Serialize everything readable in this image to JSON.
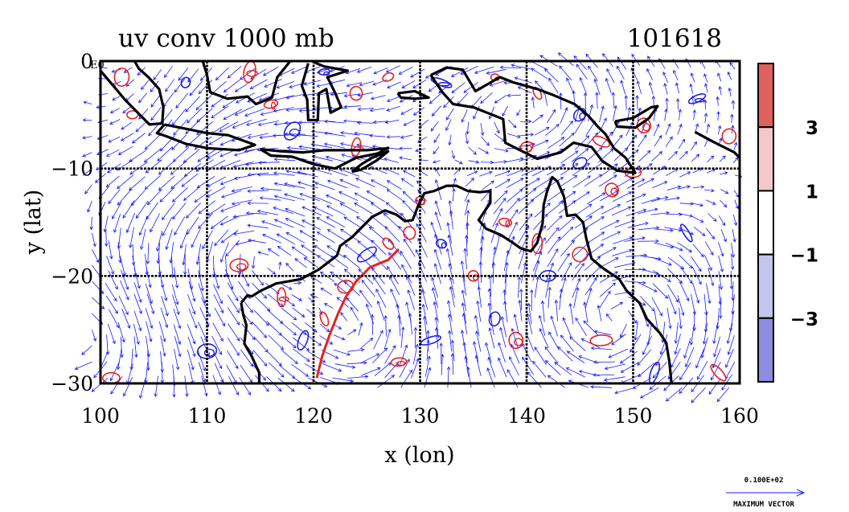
{
  "chart_data": {
    "type": "vector-field-contour",
    "title": "uv conv 1000 mb",
    "date_label": "101618",
    "xlabel": "x (lon)",
    "ylabel": "y (lat)",
    "xlim": [
      100,
      160
    ],
    "ylim": [
      -30,
      0
    ],
    "x_ticks": [
      "100",
      "110",
      "120",
      "130",
      "140",
      "150",
      "160"
    ],
    "y_ticks": [
      "0",
      "−10",
      "−20",
      "−30"
    ],
    "y_ticks_values": [
      0,
      -10,
      -20,
      -30
    ],
    "x_ticks_values": [
      100,
      110,
      120,
      130,
      140,
      150,
      160
    ],
    "top_left_label": "E0",
    "grid_x": [
      110,
      120,
      130,
      140,
      150
    ],
    "grid_y": [
      -10,
      -20
    ],
    "colorbar": {
      "levels": [
        3,
        1,
        -1,
        -3
      ],
      "labels": [
        "3",
        "1",
        "−1",
        "−3"
      ],
      "colors": [
        "#e06060",
        "#f4c8c8",
        "#ffffff",
        "#c4c4ec",
        "#8c8ce0"
      ]
    },
    "vector_color": "#1a1aff",
    "positive_contour_color": "#e82020",
    "negative_contour_color": "#2020e0",
    "coast_color": "#000000",
    "reference_vector": {
      "value": "0.100E+02",
      "label": "MAXIMUM VECTOR"
    },
    "coastlines": [
      {
        "name": "australia",
        "points": [
          [
            113.2,
            -22.5
          ],
          [
            113.8,
            -21.8
          ],
          [
            114.2,
            -21.9
          ],
          [
            115.0,
            -21.4
          ],
          [
            116.5,
            -20.7
          ],
          [
            118.8,
            -20.3
          ],
          [
            120.5,
            -19.4
          ],
          [
            122.2,
            -18.1
          ],
          [
            122.5,
            -17.2
          ],
          [
            123.6,
            -16.4
          ],
          [
            124.5,
            -15.5
          ],
          [
            125.5,
            -14.5
          ],
          [
            126.7,
            -13.9
          ],
          [
            127.8,
            -14.3
          ],
          [
            128.6,
            -14.9
          ],
          [
            129.3,
            -14.8
          ],
          [
            129.8,
            -13.5
          ],
          [
            130.4,
            -12.3
          ],
          [
            131.3,
            -12.1
          ],
          [
            132.5,
            -11.6
          ],
          [
            133.4,
            -11.6
          ],
          [
            134.5,
            -12.1
          ],
          [
            135.6,
            -12.2
          ],
          [
            136.6,
            -12.1
          ],
          [
            136.6,
            -13.2
          ],
          [
            135.9,
            -14.2
          ],
          [
            135.5,
            -14.8
          ],
          [
            136.2,
            -15.6
          ],
          [
            137.6,
            -16.2
          ],
          [
            138.7,
            -16.9
          ],
          [
            139.4,
            -17.4
          ],
          [
            140.4,
            -17.7
          ],
          [
            141.0,
            -16.9
          ],
          [
            141.5,
            -15.1
          ],
          [
            141.6,
            -13.4
          ],
          [
            141.9,
            -12.2
          ],
          [
            142.4,
            -10.8
          ],
          [
            142.9,
            -11.2
          ],
          [
            143.5,
            -12.6
          ],
          [
            143.8,
            -14.4
          ],
          [
            144.6,
            -14.3
          ],
          [
            145.3,
            -15.0
          ],
          [
            145.6,
            -16.5
          ],
          [
            146.1,
            -18.4
          ],
          [
            147.2,
            -19.3
          ],
          [
            148.7,
            -20.3
          ],
          [
            149.4,
            -21.4
          ],
          [
            150.6,
            -22.5
          ],
          [
            151.3,
            -24.0
          ],
          [
            152.5,
            -25.3
          ],
          [
            153.1,
            -26.2
          ],
          [
            153.4,
            -28.0
          ],
          [
            153.6,
            -30.0
          ]
        ]
      },
      {
        "name": "australia-south",
        "points": [
          [
            114.9,
            -30.0
          ],
          [
            114.9,
            -29.0
          ],
          [
            114.2,
            -27.5
          ],
          [
            113.5,
            -26.3
          ],
          [
            113.7,
            -24.6
          ],
          [
            113.4,
            -23.6
          ],
          [
            113.2,
            -22.5
          ]
        ]
      },
      {
        "name": "new-guinea",
        "points": [
          [
            131.0,
            -1.3
          ],
          [
            132.5,
            -0.6
          ],
          [
            134.0,
            -0.8
          ],
          [
            135.2,
            -2.8
          ],
          [
            137.5,
            -1.5
          ],
          [
            138.8,
            -2.0
          ],
          [
            141.0,
            -2.6
          ],
          [
            142.6,
            -3.2
          ],
          [
            144.5,
            -4.0
          ],
          [
            145.8,
            -5.1
          ],
          [
            146.6,
            -6.0
          ],
          [
            147.4,
            -6.8
          ],
          [
            148.2,
            -8.1
          ],
          [
            149.3,
            -9.0
          ],
          [
            150.2,
            -10.4
          ],
          [
            148.5,
            -10.2
          ],
          [
            147.1,
            -9.3
          ],
          [
            146.1,
            -8.0
          ],
          [
            144.4,
            -7.6
          ],
          [
            143.2,
            -8.5
          ],
          [
            141.0,
            -9.1
          ],
          [
            139.0,
            -8.1
          ],
          [
            138.0,
            -7.6
          ],
          [
            137.8,
            -5.4
          ],
          [
            135.0,
            -4.3
          ],
          [
            133.1,
            -4.0
          ],
          [
            132.1,
            -2.9
          ],
          [
            131.0,
            -1.3
          ]
        ]
      },
      {
        "name": "java",
        "points": [
          [
            106.0,
            -5.9
          ],
          [
            108.0,
            -6.3
          ],
          [
            110.0,
            -6.7
          ],
          [
            112.0,
            -6.9
          ],
          [
            114.5,
            -7.8
          ],
          [
            113.0,
            -8.3
          ],
          [
            110.0,
            -8.1
          ],
          [
            108.0,
            -7.7
          ],
          [
            106.2,
            -7.0
          ],
          [
            105.3,
            -6.7
          ],
          [
            106.0,
            -5.9
          ]
        ]
      },
      {
        "name": "lesser-sunda",
        "points": [
          [
            115.0,
            -8.2
          ],
          [
            117.0,
            -8.4
          ],
          [
            119.0,
            -8.5
          ],
          [
            121.0,
            -8.3
          ],
          [
            123.0,
            -8.3
          ],
          [
            125.0,
            -8.3
          ],
          [
            127.0,
            -8.1
          ],
          [
            126.0,
            -8.6
          ],
          [
            124.0,
            -9.0
          ],
          [
            122.0,
            -10.0
          ],
          [
            120.0,
            -9.6
          ],
          [
            118.0,
            -8.9
          ],
          [
            116.0,
            -8.8
          ],
          [
            115.0,
            -8.2
          ]
        ]
      },
      {
        "name": "sumatra",
        "points": [
          [
            100.0,
            -0.9
          ],
          [
            101.2,
            -2.3
          ],
          [
            102.3,
            -3.6
          ],
          [
            103.5,
            -4.8
          ],
          [
            104.6,
            -5.9
          ],
          [
            105.8,
            -5.8
          ],
          [
            105.9,
            -4.3
          ],
          [
            105.5,
            -2.6
          ],
          [
            104.5,
            -1.5
          ],
          [
            103.6,
            -0.7
          ],
          [
            103.2,
            0.0
          ]
        ]
      },
      {
        "name": "borneo",
        "points": [
          [
            109.6,
            0.0
          ],
          [
            110.0,
            -1.3
          ],
          [
            110.3,
            -2.9
          ],
          [
            111.9,
            -3.5
          ],
          [
            113.8,
            -3.3
          ],
          [
            114.6,
            -4.0
          ],
          [
            116.1,
            -3.4
          ],
          [
            116.6,
            -1.5
          ],
          [
            117.5,
            -0.4
          ],
          [
            117.8,
            0.0
          ]
        ]
      },
      {
        "name": "sulawesi",
        "points": [
          [
            119.5,
            -0.2
          ],
          [
            118.9,
            -2.3
          ],
          [
            119.4,
            -3.6
          ],
          [
            119.5,
            -5.5
          ],
          [
            120.4,
            -5.5
          ],
          [
            120.5,
            -3.0
          ],
          [
            121.2,
            -2.6
          ],
          [
            121.6,
            -4.8
          ],
          [
            122.6,
            -4.3
          ],
          [
            122.0,
            -2.9
          ],
          [
            121.3,
            -1.5
          ],
          [
            123.2,
            -0.9
          ],
          [
            121.0,
            -0.5
          ],
          [
            120.0,
            -0.1
          ]
        ]
      },
      {
        "name": "timor",
        "points": [
          [
            123.6,
            -10.3
          ],
          [
            124.5,
            -9.6
          ],
          [
            125.5,
            -9.0
          ],
          [
            127.0,
            -8.4
          ],
          [
            126.0,
            -9.2
          ],
          [
            124.5,
            -10.1
          ],
          [
            123.6,
            -10.3
          ]
        ]
      },
      {
        "name": "new-britain",
        "points": [
          [
            148.3,
            -5.6
          ],
          [
            150.0,
            -5.3
          ],
          [
            151.7,
            -4.3
          ],
          [
            152.3,
            -4.2
          ],
          [
            151.5,
            -5.3
          ],
          [
            150.2,
            -6.2
          ],
          [
            148.5,
            -6.1
          ],
          [
            148.3,
            -5.6
          ]
        ]
      },
      {
        "name": "seram",
        "points": [
          [
            127.9,
            -3.0
          ],
          [
            129.5,
            -2.8
          ],
          [
            130.8,
            -3.4
          ],
          [
            129.5,
            -3.5
          ],
          [
            128.2,
            -3.4
          ],
          [
            127.9,
            -3.0
          ]
        ]
      },
      {
        "name": "solomon",
        "points": [
          [
            155.8,
            -6.6
          ],
          [
            157.5,
            -7.5
          ],
          [
            159.5,
            -8.5
          ],
          [
            160.0,
            -9.0
          ]
        ]
      }
    ]
  }
}
